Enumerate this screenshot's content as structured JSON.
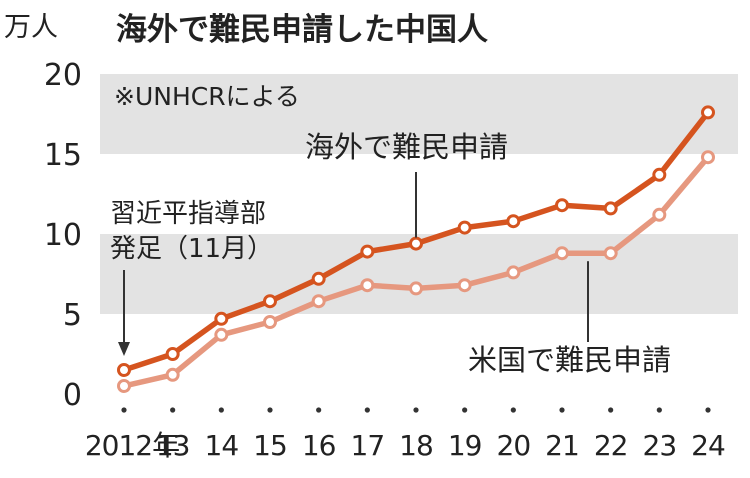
{
  "chart_data": {
    "type": "line",
    "title": "海外で難民申請した中国人",
    "ylabel": "万人",
    "note": "※UNHCRによる",
    "ylim": [
      0,
      20
    ],
    "yticks": [
      "0",
      "5",
      "10",
      "15",
      "20"
    ],
    "x": [
      2012,
      2013,
      2014,
      2015,
      2016,
      2017,
      2018,
      2019,
      2020,
      2021,
      2022,
      2023,
      2024
    ],
    "xtick_labels": [
      "2012年",
      "13",
      "14",
      "15",
      "16",
      "17",
      "18",
      "19",
      "20",
      "21",
      "22",
      "23",
      "24"
    ],
    "grid": "alternating shaded bands",
    "series": [
      {
        "name": "海外で難民申請",
        "color": "#d5541f",
        "values": [
          1.5,
          2.5,
          4.7,
          5.8,
          7.2,
          8.9,
          9.4,
          10.4,
          10.8,
          11.8,
          11.6,
          13.7,
          17.6
        ]
      },
      {
        "name": "米国で難民申請",
        "color": "#e6987f",
        "values": [
          0.5,
          1.2,
          3.7,
          4.5,
          5.8,
          6.8,
          6.6,
          6.8,
          7.6,
          8.8,
          8.8,
          11.2,
          14.8
        ]
      }
    ],
    "annotations": [
      {
        "text": "習近平指導部",
        "text2": "発足（11月）",
        "x": 2012
      }
    ]
  }
}
